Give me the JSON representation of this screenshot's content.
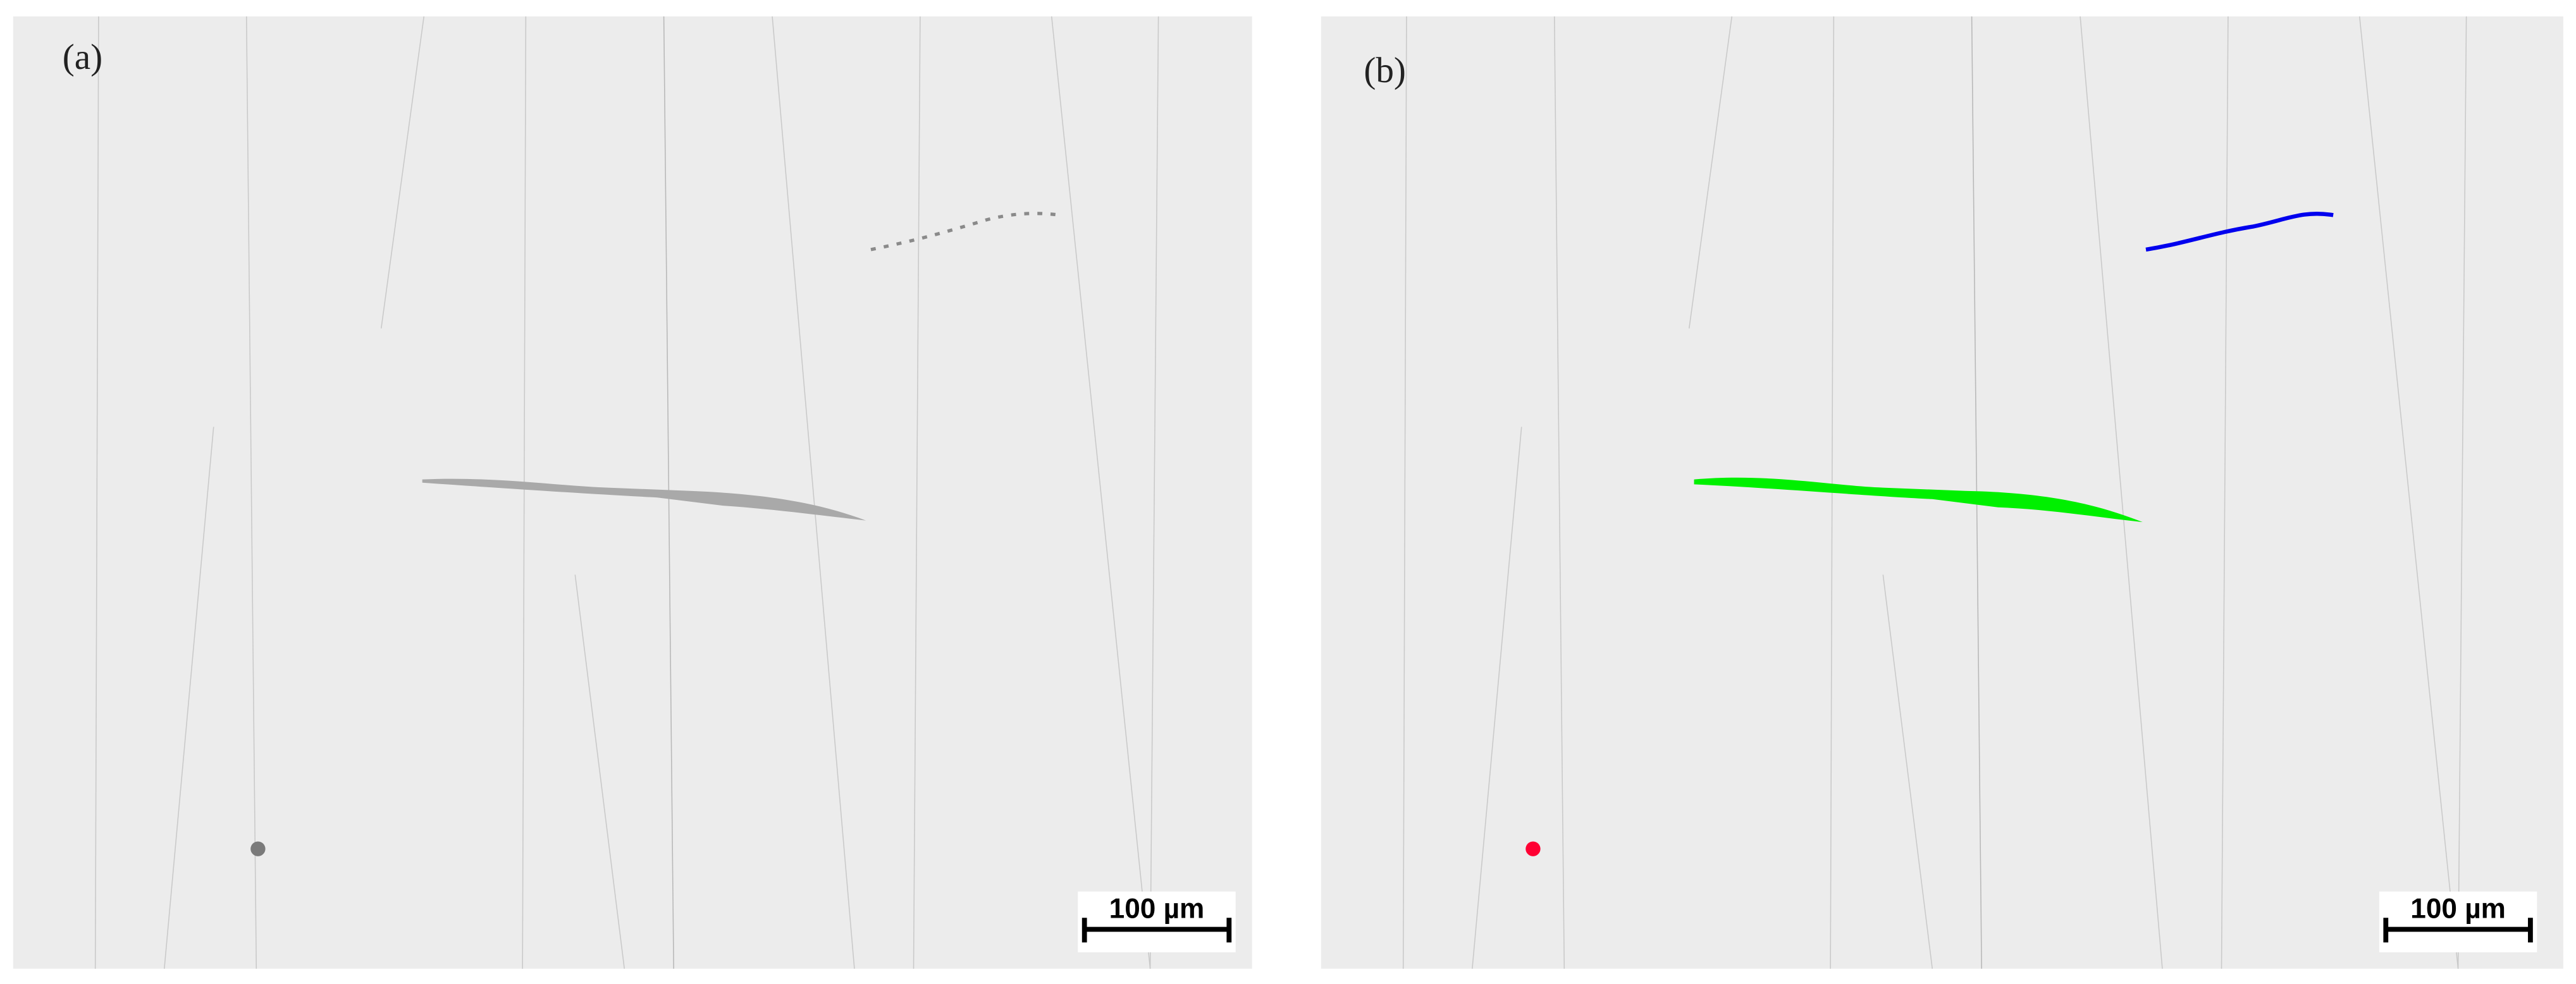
{
  "panels": [
    {
      "label": "(a)",
      "scale_bar": "100 µm"
    },
    {
      "label": "(b)",
      "scale_bar": "100 µm"
    }
  ]
}
